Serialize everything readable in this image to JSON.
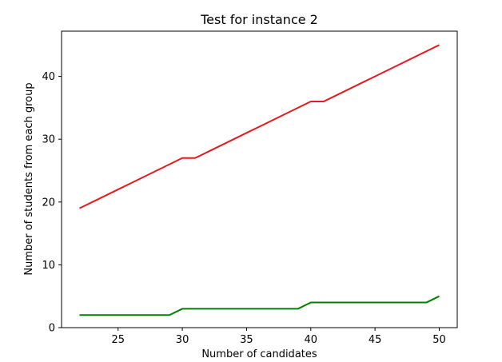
{
  "chart_data": {
    "type": "line",
    "title": "Test for instance 2",
    "xlabel": "Number of candidates",
    "ylabel": "Number of students from each group",
    "xlim": [
      20.6,
      51.4
    ],
    "ylim": [
      0,
      47.2
    ],
    "xticks": [
      25,
      30,
      35,
      40,
      45,
      50
    ],
    "yticks": [
      0,
      10,
      20,
      30,
      40
    ],
    "grid": false,
    "x": [
      22,
      23,
      24,
      25,
      26,
      27,
      28,
      29,
      30,
      31,
      32,
      33,
      34,
      35,
      36,
      37,
      38,
      39,
      40,
      41,
      42,
      43,
      44,
      45,
      46,
      47,
      48,
      49,
      50
    ],
    "series": [
      {
        "color": "#e41a1c",
        "values": [
          19,
          20,
          21,
          22,
          23,
          24,
          25,
          26,
          27,
          27,
          28,
          29,
          30,
          31,
          32,
          33,
          34,
          35,
          36,
          36,
          37,
          38,
          39,
          40,
          41,
          42,
          43,
          44,
          45
        ]
      },
      {
        "color": "#008000",
        "values": [
          2,
          2,
          2,
          2,
          2,
          2,
          2,
          2,
          3,
          3,
          3,
          3,
          3,
          3,
          3,
          3,
          3,
          3,
          4,
          4,
          4,
          4,
          4,
          4,
          4,
          4,
          4,
          4,
          5
        ]
      }
    ]
  }
}
